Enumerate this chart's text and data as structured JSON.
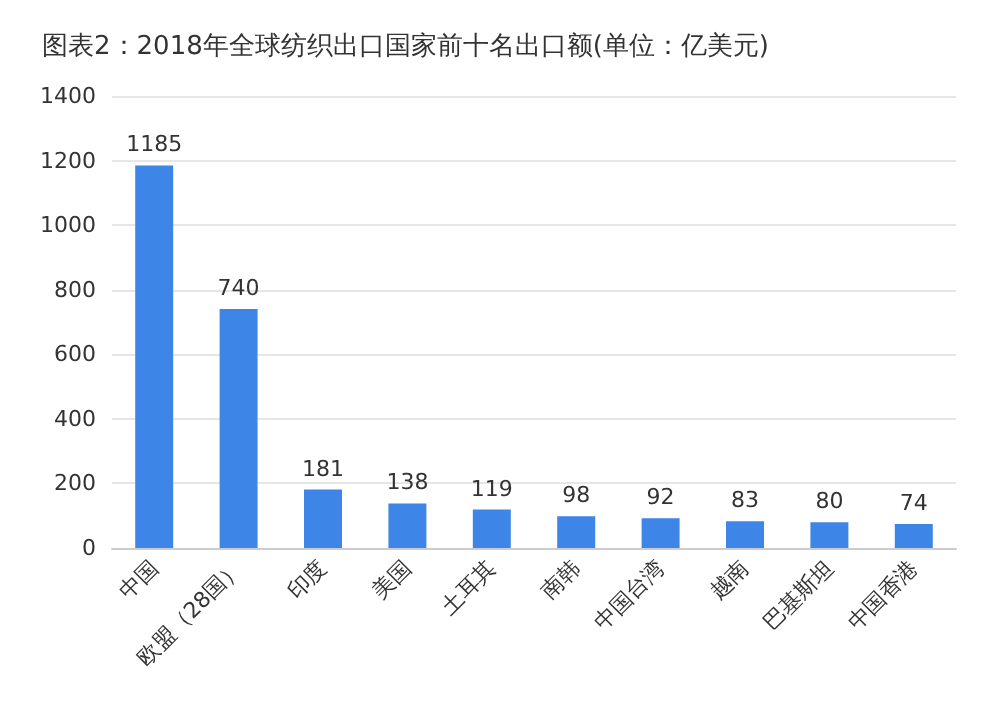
{
  "chart_data": {
    "type": "bar",
    "title": "图表2：2018年全球纺织出口国家前十名出口额(单位：亿美元)",
    "categories": [
      "中国",
      "欧盟（28国）",
      "印度",
      "美国",
      "土耳其",
      "南韩",
      "中国台湾",
      "越南",
      "巴基斯坦",
      "中国香港"
    ],
    "values": [
      1185,
      740,
      181,
      138,
      119,
      98,
      92,
      83,
      80,
      74
    ],
    "color": "#3d85e6",
    "ylim": [
      0,
      1400
    ],
    "yticks": [
      0,
      200,
      400,
      600,
      800,
      1000,
      1200,
      1400
    ],
    "grid": "y",
    "data_labels": true
  }
}
